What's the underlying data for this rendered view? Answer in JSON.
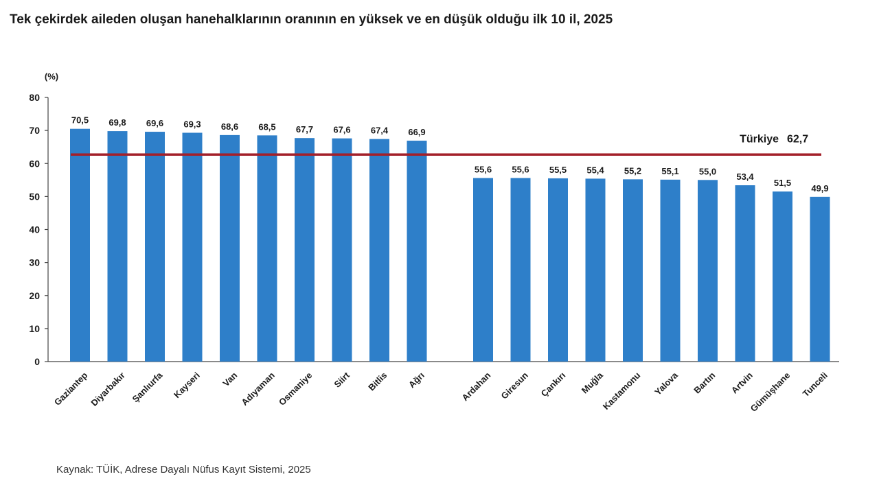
{
  "chart_data": {
    "type": "bar",
    "title": "Tek çekirdek aileden oluşan hanehalklarının oranının en yüksek ve en düşük olduğu ilk 10 il, 2025",
    "ylabel": "(%)",
    "xlabel": "",
    "ylim": [
      0,
      80
    ],
    "yticks": [
      0,
      10,
      20,
      30,
      40,
      50,
      60,
      70,
      80
    ],
    "grid": false,
    "legend": "none",
    "groups": [
      {
        "categories": [
          "Gaziantep",
          "Diyarbakır",
          "Şanlıurfa",
          "Kayseri",
          "Van",
          "Adıyaman",
          "Osmaniye",
          "Siirt",
          "Bitlis",
          "Ağrı"
        ],
        "values": [
          70.5,
          69.8,
          69.6,
          69.3,
          68.6,
          68.5,
          67.7,
          67.6,
          67.4,
          66.9
        ],
        "value_labels": [
          "70,5",
          "69,8",
          "69,6",
          "69,3",
          "68,6",
          "68,5",
          "67,7",
          "67,6",
          "67,4",
          "66,9"
        ]
      },
      {
        "categories": [
          "Ardahan",
          "Giresun",
          "Çankırı",
          "Muğla",
          "Kastamonu",
          "Yalova",
          "Bartın",
          "Artvin",
          "Gümüşhane",
          "Tunceli"
        ],
        "values": [
          55.6,
          55.6,
          55.5,
          55.4,
          55.2,
          55.1,
          55.0,
          53.4,
          51.5,
          49.9
        ],
        "value_labels": [
          "55,6",
          "55,6",
          "55,5",
          "55,4",
          "55,2",
          "55,1",
          "55,0",
          "53,4",
          "51,5",
          "49,9"
        ]
      }
    ],
    "reference_line": {
      "name": "Türkiye",
      "value": 62.7,
      "label": "62,7"
    },
    "colors": {
      "bar": "#2e7fc9",
      "reference_line": "#a3202a",
      "axis": "#444444"
    }
  },
  "source": "Kaynak: TÜİK, Adrese Dayalı Nüfus Kayıt Sistemi, 2025"
}
